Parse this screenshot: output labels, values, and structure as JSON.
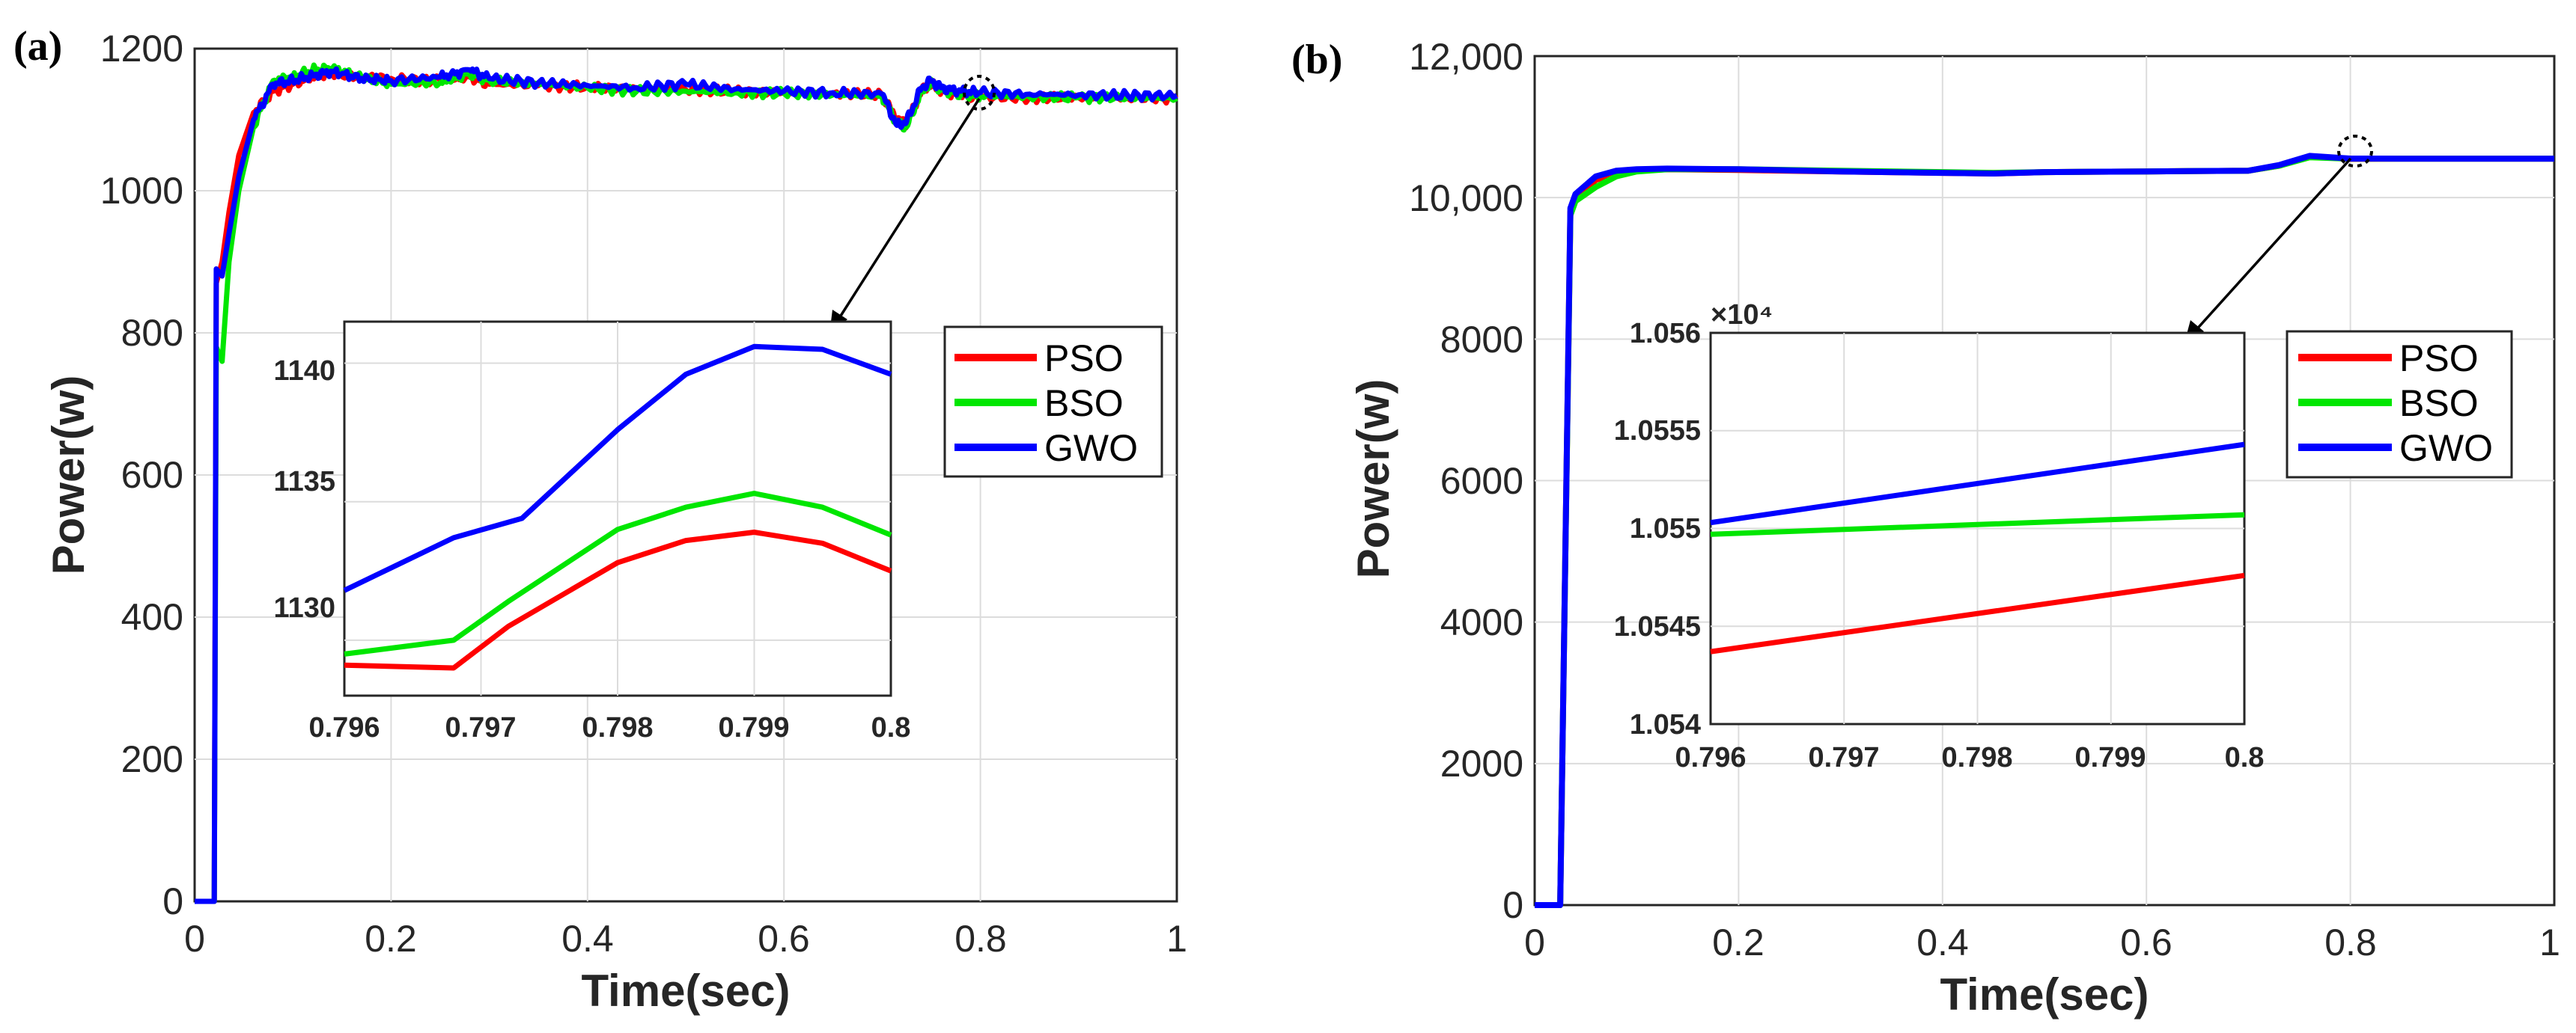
{
  "figure": {
    "panels": [
      {
        "label": "(a)",
        "xlabel": "Time(sec)",
        "ylabel": "Power(w)",
        "xlim": [
          0,
          1
        ],
        "ylim": [
          0,
          1200
        ],
        "xticks": [
          "0",
          "0.2",
          "0.4",
          "0.6",
          "0.8",
          "1"
        ],
        "yticks": [
          "0",
          "200",
          "400",
          "600",
          "800",
          "1000",
          "1200"
        ],
        "legend": [
          "PSO",
          "BSO",
          "GWO"
        ],
        "inset": {
          "xlim": [
            0.796,
            0.8
          ],
          "ylim": [
            1128,
            1141.5
          ],
          "xticks": [
            "0.796",
            "0.797",
            "0.798",
            "0.799",
            "0.8"
          ],
          "yticks": [
            "1130",
            "1135",
            "1140"
          ],
          "exponent": ""
        }
      },
      {
        "label": "(b)",
        "xlabel": "Time(sec)",
        "ylabel": "Power(w)",
        "xlim": [
          0,
          1
        ],
        "ylim": [
          0,
          12000
        ],
        "xticks": [
          "0",
          "0.2",
          "0.4",
          "0.6",
          "0.8",
          "1"
        ],
        "yticks": [
          "0",
          "2000",
          "4000",
          "6000",
          "8000",
          "10,000",
          "12,000"
        ],
        "legend": [
          "PSO",
          "BSO",
          "GWO"
        ],
        "inset": {
          "xlim": [
            0.796,
            0.8
          ],
          "ylim": [
            1.054,
            1.056
          ],
          "xticks": [
            "0.796",
            "0.797",
            "0.798",
            "0.799",
            "0.8"
          ],
          "yticks": [
            "1.054",
            "1.0545",
            "1.055",
            "1.0555",
            "1.056"
          ],
          "exponent": "×10⁴"
        }
      }
    ]
  },
  "colors": {
    "PSO": "#ff0000",
    "BSO": "#00e600",
    "GWO": "#0000ff"
  },
  "chart_data": [
    {
      "type": "line",
      "title": "",
      "xlabel": "Time(sec)",
      "ylabel": "Power(w)",
      "xlim": [
        0,
        1
      ],
      "ylim": [
        0,
        1200
      ],
      "grid": true,
      "legend_position": "right-middle",
      "series": [
        {
          "name": "PSO",
          "x": [
            0,
            0.02,
            0.022,
            0.028,
            0.035,
            0.045,
            0.06,
            0.08,
            0.1,
            0.12,
            0.14,
            0.17,
            0.2,
            0.25,
            0.28,
            0.3,
            0.35,
            0.4,
            0.45,
            0.5,
            0.55,
            0.6,
            0.65,
            0.7,
            0.715,
            0.725,
            0.74,
            0.75,
            0.76,
            0.78,
            0.8,
            0.85,
            0.9,
            0.95,
            1.0
          ],
          "y": [
            0,
            0,
            870,
            900,
            970,
            1050,
            1110,
            1140,
            1150,
            1160,
            1165,
            1160,
            1158,
            1155,
            1160,
            1150,
            1148,
            1146,
            1144,
            1142,
            1140,
            1138,
            1137,
            1135,
            1100,
            1095,
            1140,
            1150,
            1140,
            1134,
            1132,
            1131,
            1131,
            1130,
            1130
          ]
        },
        {
          "name": "BSO",
          "x": [
            0,
            0.02,
            0.022,
            0.028,
            0.035,
            0.045,
            0.06,
            0.08,
            0.1,
            0.12,
            0.14,
            0.17,
            0.2,
            0.25,
            0.28,
            0.3,
            0.35,
            0.4,
            0.45,
            0.5,
            0.55,
            0.6,
            0.65,
            0.7,
            0.715,
            0.725,
            0.74,
            0.75,
            0.76,
            0.78,
            0.8,
            0.85,
            0.9,
            0.95,
            1.0
          ],
          "y": [
            0,
            0,
            780,
            760,
            900,
            1000,
            1090,
            1155,
            1160,
            1170,
            1172,
            1160,
            1150,
            1152,
            1165,
            1155,
            1150,
            1145,
            1140,
            1140,
            1138,
            1137,
            1135,
            1133,
            1095,
            1090,
            1140,
            1152,
            1142,
            1136,
            1133,
            1132,
            1131,
            1131,
            1130
          ]
        },
        {
          "name": "GWO",
          "x": [
            0,
            0.02,
            0.022,
            0.028,
            0.035,
            0.045,
            0.06,
            0.08,
            0.1,
            0.12,
            0.14,
            0.17,
            0.2,
            0.25,
            0.28,
            0.3,
            0.35,
            0.4,
            0.45,
            0.5,
            0.55,
            0.6,
            0.65,
            0.7,
            0.715,
            0.725,
            0.74,
            0.75,
            0.76,
            0.78,
            0.8,
            0.85,
            0.9,
            0.95,
            1.0
          ],
          "y": [
            0,
            0,
            890,
            880,
            940,
            1020,
            1100,
            1150,
            1155,
            1162,
            1168,
            1158,
            1155,
            1160,
            1170,
            1158,
            1152,
            1148,
            1145,
            1150,
            1143,
            1140,
            1138,
            1136,
            1092,
            1098,
            1145,
            1155,
            1145,
            1140,
            1138,
            1136,
            1135,
            1134,
            1134
          ]
        }
      ],
      "inset": {
        "xlim": [
          0.796,
          0.8
        ],
        "ylim": [
          1128,
          1141.5
        ],
        "series": [
          {
            "name": "PSO",
            "x": [
              0.796,
              0.7968,
              0.7972,
              0.798,
              0.7985,
              0.799,
              0.7995,
              0.8
            ],
            "y": [
              1129.1,
              1129,
              1130.5,
              1132.8,
              1133.6,
              1133.9,
              1133.5,
              1132.5
            ]
          },
          {
            "name": "BSO",
            "x": [
              0.796,
              0.7968,
              0.7972,
              0.798,
              0.7985,
              0.799,
              0.7995,
              0.8
            ],
            "y": [
              1129.5,
              1130,
              1131.4,
              1134,
              1134.8,
              1135.3,
              1134.8,
              1133.8
            ]
          },
          {
            "name": "GWO",
            "x": [
              0.796,
              0.7968,
              0.7973,
              0.798,
              0.7985,
              0.799,
              0.7995,
              0.8
            ],
            "y": [
              1131.8,
              1133.7,
              1134.4,
              1137.6,
              1139.6,
              1140.6,
              1140.5,
              1139.6
            ]
          }
        ]
      }
    },
    {
      "type": "line",
      "title": "",
      "xlabel": "Time(sec)",
      "ylabel": "Power(w)",
      "xlim": [
        0,
        1
      ],
      "ylim": [
        0,
        12000
      ],
      "grid": true,
      "legend_position": "right-middle",
      "series": [
        {
          "name": "PSO",
          "x": [
            0,
            0.02,
            0.025,
            0.035,
            0.04,
            0.06,
            0.08,
            0.1,
            0.13,
            0.2,
            0.3,
            0.4,
            0.45,
            0.5,
            0.6,
            0.7,
            0.73,
            0.76,
            0.8,
            0.85,
            0.9,
            1.0
          ],
          "y": [
            0,
            0,
            0,
            9800,
            10000,
            10250,
            10350,
            10380,
            10400,
            10390,
            10370,
            10350,
            10340,
            10360,
            10370,
            10380,
            10450,
            10580,
            10547,
            10550,
            10550,
            10550
          ]
        },
        {
          "name": "BSO",
          "x": [
            0,
            0.02,
            0.025,
            0.035,
            0.04,
            0.06,
            0.08,
            0.1,
            0.13,
            0.2,
            0.3,
            0.4,
            0.45,
            0.5,
            0.6,
            0.7,
            0.73,
            0.76,
            0.8,
            0.85,
            0.9,
            1.0
          ],
          "y": [
            0,
            0,
            0,
            9750,
            9950,
            10150,
            10300,
            10370,
            10400,
            10400,
            10380,
            10360,
            10350,
            10360,
            10370,
            10380,
            10450,
            10570,
            10550,
            10550,
            10550,
            10550
          ]
        },
        {
          "name": "GWO",
          "x": [
            0,
            0.02,
            0.025,
            0.035,
            0.04,
            0.06,
            0.08,
            0.1,
            0.13,
            0.2,
            0.3,
            0.4,
            0.45,
            0.5,
            0.6,
            0.7,
            0.73,
            0.76,
            0.8,
            0.85,
            0.9,
            1.0
          ],
          "y": [
            0,
            0,
            0,
            9850,
            10050,
            10300,
            10380,
            10400,
            10410,
            10400,
            10370,
            10350,
            10340,
            10360,
            10370,
            10380,
            10460,
            10590,
            10552,
            10550,
            10550,
            10550
          ]
        }
      ],
      "inset": {
        "xlim": [
          0.796,
          0.8
        ],
        "ylim": [
          1.054,
          1.056
        ],
        "y_multiplier": 10000,
        "series": [
          {
            "name": "PSO",
            "x": [
              0.796,
              0.8
            ],
            "y": [
              1.05437,
              1.05476
            ]
          },
          {
            "name": "BSO",
            "x": [
              0.796,
              0.8
            ],
            "y": [
              1.05497,
              1.05507
            ]
          },
          {
            "name": "GWO",
            "x": [
              0.796,
              0.8
            ],
            "y": [
              1.05503,
              1.05543
            ]
          }
        ]
      }
    }
  ]
}
